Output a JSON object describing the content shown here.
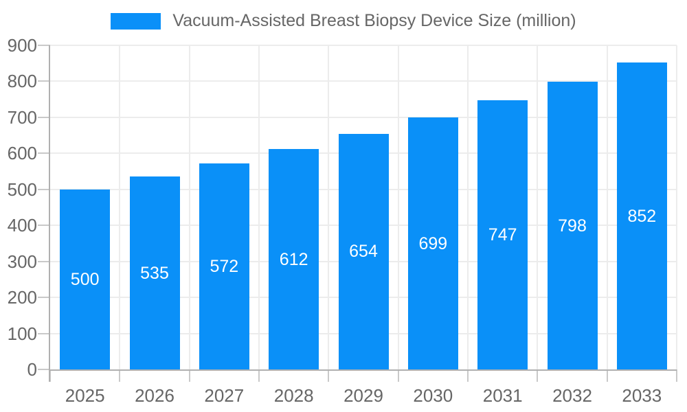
{
  "chart_data": {
    "type": "bar",
    "title": "Vacuum-Assisted Breast Biopsy Device Size (million)",
    "legend": {
      "position": "top",
      "entries": [
        "Vacuum-Assisted Breast Biopsy Device Size (million)"
      ]
    },
    "categories": [
      "2025",
      "2026",
      "2027",
      "2028",
      "2029",
      "2030",
      "2031",
      "2032",
      "2033"
    ],
    "values": [
      500,
      535,
      572,
      612,
      654,
      699,
      747,
      798,
      852
    ],
    "data_labels_visible": true,
    "xlabel": "",
    "ylabel": "",
    "ylim": [
      0,
      900
    ],
    "ytick_step": 100,
    "yticks": [
      0,
      100,
      200,
      300,
      400,
      500,
      600,
      700,
      800,
      900
    ],
    "grid": true,
    "colors": {
      "bar": "#0a90f8",
      "data_label": "#ffffff",
      "axis_text": "#666666",
      "legend_text": "#666666",
      "gridline": "#ececec",
      "tick": "#c9c9c9",
      "axis_line": "#b0b0b0",
      "background": "#ffffff"
    }
  }
}
